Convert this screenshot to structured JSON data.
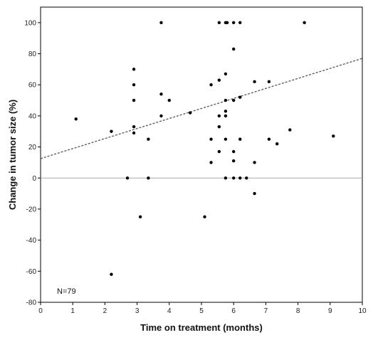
{
  "chart_data": {
    "type": "scatter",
    "title": "",
    "xlabel": "Time on treatment (months)",
    "ylabel": "Change in tumor size (%)",
    "xlim": [
      0,
      10
    ],
    "ylim": [
      -80,
      110
    ],
    "xticks": [
      0,
      1,
      2,
      3,
      4,
      5,
      6,
      7,
      8,
      9,
      10
    ],
    "yticks": [
      -80,
      -60,
      -40,
      -20,
      0,
      20,
      40,
      60,
      80,
      100
    ],
    "grid": false,
    "reference_line_y": 0,
    "annotation": "N=79",
    "points": [
      {
        "x": 1.1,
        "y": 38
      },
      {
        "x": 2.2,
        "y": 30
      },
      {
        "x": 2.2,
        "y": -62
      },
      {
        "x": 2.7,
        "y": 0
      },
      {
        "x": 2.9,
        "y": 70
      },
      {
        "x": 2.9,
        "y": 60
      },
      {
        "x": 2.9,
        "y": 50
      },
      {
        "x": 2.9,
        "y": 33
      },
      {
        "x": 2.9,
        "y": 29
      },
      {
        "x": 3.1,
        "y": -25
      },
      {
        "x": 3.35,
        "y": 25
      },
      {
        "x": 3.35,
        "y": 0
      },
      {
        "x": 3.75,
        "y": 100
      },
      {
        "x": 3.75,
        "y": 54
      },
      {
        "x": 3.75,
        "y": 40
      },
      {
        "x": 4.0,
        "y": 50
      },
      {
        "x": 4.65,
        "y": 42
      },
      {
        "x": 5.1,
        "y": -25
      },
      {
        "x": 5.3,
        "y": 60
      },
      {
        "x": 5.3,
        "y": 25
      },
      {
        "x": 5.3,
        "y": 10
      },
      {
        "x": 5.55,
        "y": 100
      },
      {
        "x": 5.55,
        "y": 63
      },
      {
        "x": 5.55,
        "y": 40
      },
      {
        "x": 5.55,
        "y": 33
      },
      {
        "x": 5.55,
        "y": 17
      },
      {
        "x": 5.75,
        "y": 100
      },
      {
        "x": 5.75,
        "y": 67
      },
      {
        "x": 5.75,
        "y": 50
      },
      {
        "x": 5.75,
        "y": 43
      },
      {
        "x": 5.75,
        "y": 40
      },
      {
        "x": 5.75,
        "y": 25
      },
      {
        "x": 5.75,
        "y": 0
      },
      {
        "x": 5.8,
        "y": 100
      },
      {
        "x": 6.0,
        "y": 100
      },
      {
        "x": 6.0,
        "y": 83
      },
      {
        "x": 6.0,
        "y": 50
      },
      {
        "x": 6.0,
        "y": 17
      },
      {
        "x": 6.0,
        "y": 11
      },
      {
        "x": 6.0,
        "y": 0
      },
      {
        "x": 6.2,
        "y": 100
      },
      {
        "x": 6.2,
        "y": 52
      },
      {
        "x": 6.2,
        "y": 25
      },
      {
        "x": 6.2,
        "y": 0
      },
      {
        "x": 6.4,
        "y": 0
      },
      {
        "x": 6.65,
        "y": 62
      },
      {
        "x": 6.65,
        "y": 10
      },
      {
        "x": 6.65,
        "y": -10
      },
      {
        "x": 7.1,
        "y": 62
      },
      {
        "x": 7.1,
        "y": 25
      },
      {
        "x": 7.35,
        "y": 22
      },
      {
        "x": 7.75,
        "y": 31
      },
      {
        "x": 8.2,
        "y": 100
      },
      {
        "x": 9.1,
        "y": 27
      }
    ],
    "trendline": {
      "style": "dashed",
      "x": [
        0,
        10
      ],
      "y": [
        12.5,
        77
      ]
    }
  }
}
